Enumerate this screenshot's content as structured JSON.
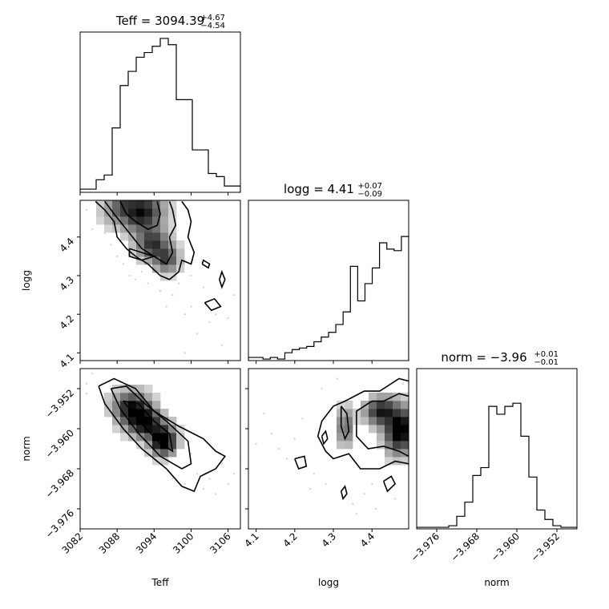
{
  "chart_data": {
    "type": "corner",
    "parameters": [
      "Teff",
      "logg",
      "norm"
    ],
    "titles": [
      {
        "param": "Teff",
        "label": "Teff = 3094.39",
        "plus": "+4.67",
        "minus": "−4.54"
      },
      {
        "param": "logg",
        "label": "logg = 4.41",
        "plus": "+0.07",
        "minus": "−0.09"
      },
      {
        "param": "norm",
        "label": "norm = −3.96",
        "plus": "+0.01",
        "minus": "−0.01"
      }
    ],
    "ranges": {
      "Teff": [
        3082,
        3108
      ],
      "logg": [
        4.08,
        4.495
      ],
      "norm": [
        -3.98,
        -3.948
      ]
    },
    "ticks": {
      "Teff": {
        "values": [
          3082,
          3088,
          3094,
          3100,
          3106
        ],
        "labels": [
          "3082",
          "3088",
          "3094",
          "3100",
          "3106"
        ]
      },
      "logg": {
        "values": [
          4.1,
          4.2,
          4.3,
          4.4
        ],
        "labels": [
          "4.1",
          "4.2",
          "4.3",
          "4.4"
        ]
      },
      "norm": {
        "values": [
          -3.976,
          -3.968,
          -3.96,
          -3.952
        ],
        "labels": [
          "−3.976",
          "−3.968",
          "−3.960",
          "−3.952"
        ]
      }
    },
    "histograms": {
      "Teff": [
        0.02,
        0.02,
        0.08,
        0.11,
        0.41,
        0.68,
        0.77,
        0.86,
        0.89,
        0.93,
        0.98,
        0.94,
        0.59,
        0.59,
        0.27,
        0.27,
        0.12,
        0.1,
        0.04,
        0.04
      ],
      "logg": [
        0.02,
        0.02,
        0.01,
        0.02,
        0.01,
        0.05,
        0.07,
        0.08,
        0.09,
        0.12,
        0.15,
        0.18,
        0.23,
        0.31,
        0.6,
        0.38,
        0.49,
        0.59,
        0.75,
        0.71,
        0.7,
        0.79
      ],
      "norm": [
        0.01,
        0.01,
        0.01,
        0.01,
        0.02,
        0.08,
        0.17,
        0.34,
        0.39,
        0.78,
        0.73,
        0.78,
        0.8,
        0.59,
        0.33,
        0.12,
        0.06,
        0.02,
        0.01,
        0.01
      ]
    },
    "hist2d": [
      {
        "x": "Teff",
        "y": "logg",
        "blobs": [
          {
            "x": 3091,
            "y": 4.47,
            "sx": 3.0,
            "sy": 0.035,
            "w": 1.0
          },
          {
            "x": 3094,
            "y": 4.38,
            "sx": 2.0,
            "sy": 0.03,
            "w": 0.75
          },
          {
            "x": 3096,
            "y": 4.34,
            "sx": 1.5,
            "sy": 0.025,
            "w": 0.55
          }
        ],
        "contours": [
          [
            [
              3084.5,
              4.492
            ],
            [
              3086,
              4.47
            ],
            [
              3087.5,
              4.44
            ],
            [
              3088,
              4.4
            ],
            [
              3089.5,
              4.37
            ],
            [
              3091,
              4.35
            ],
            [
              3093,
              4.33
            ],
            [
              3095,
              4.3
            ],
            [
              3096.5,
              4.29
            ],
            [
              3098,
              4.31
            ],
            [
              3098.5,
              4.34
            ],
            [
              3100,
              4.33
            ],
            [
              3100.5,
              4.36
            ],
            [
              3099.5,
              4.4
            ],
            [
              3100,
              4.44
            ],
            [
              3099.5,
              4.47
            ],
            [
              3098.5,
              4.492
            ]
          ],
          [
            [
              3086,
              4.492
            ],
            [
              3087.5,
              4.46
            ],
            [
              3089,
              4.43
            ],
            [
              3090.5,
              4.4
            ],
            [
              3092,
              4.37
            ],
            [
              3094,
              4.35
            ],
            [
              3096,
              4.33
            ],
            [
              3097,
              4.36
            ],
            [
              3096.5,
              4.4
            ],
            [
              3097.5,
              4.43
            ],
            [
              3097,
              4.47
            ],
            [
              3096.5,
              4.492
            ]
          ],
          [
            [
              3088.5,
              4.492
            ],
            [
              3089.5,
              4.46
            ],
            [
              3091,
              4.44
            ],
            [
              3093,
              4.42
            ],
            [
              3094.5,
              4.43
            ],
            [
              3095,
              4.46
            ],
            [
              3094.5,
              4.492
            ]
          ],
          [
            [
              3090,
              4.37
            ],
            [
              3092,
              4.36
            ],
            [
              3094,
              4.35
            ],
            [
              3092,
              4.34
            ],
            [
              3090,
              4.35
            ],
            [
              3090,
              4.37
            ]
          ],
          [
            [
              3102.2,
              4.23
            ],
            [
              3103.3,
              4.21
            ],
            [
              3104.8,
              4.22
            ],
            [
              3103.8,
              4.24
            ],
            [
              3102.2,
              4.23
            ]
          ],
          [
            [
              3104.6,
              4.29
            ],
            [
              3105,
              4.27
            ],
            [
              3105.5,
              4.29
            ],
            [
              3105,
              4.31
            ],
            [
              3104.6,
              4.29
            ]
          ],
          [
            [
              3101.8,
              4.33
            ],
            [
              3102.8,
              4.32
            ],
            [
              3103,
              4.33
            ],
            [
              3102,
              4.34
            ],
            [
              3101.8,
              4.33
            ]
          ]
        ],
        "scatter": [
          [
            3086,
            4.41
          ],
          [
            3087,
            4.38
          ],
          [
            3089,
            4.33
          ],
          [
            3090,
            4.3
          ],
          [
            3092,
            4.31
          ],
          [
            3095,
            4.26
          ],
          [
            3097,
            4.25
          ],
          [
            3099,
            4.2
          ],
          [
            3100,
            4.22
          ],
          [
            3103,
            4.18
          ],
          [
            3104,
            4.2
          ],
          [
            3106,
            4.19
          ],
          [
            3101,
            4.15
          ],
          [
            3098,
            4.28
          ],
          [
            3093,
            4.28
          ],
          [
            3085,
            4.45
          ],
          [
            3083,
            4.47
          ],
          [
            3107,
            4.25
          ],
          [
            3105,
            4.12
          ],
          [
            3099,
            4.1
          ],
          [
            3102,
            4.27
          ],
          [
            3096,
            4.22
          ],
          [
            3088,
            4.35
          ],
          [
            3091,
            4.29
          ],
          [
            3100,
            4.3
          ],
          [
            3084,
            4.42
          ]
        ]
      },
      {
        "x": "Teff",
        "y": "norm",
        "blobs": [
          {
            "x": 3090,
            "y": -3.9555,
            "sx": 2.2,
            "sy": 0.0025,
            "w": 0.8
          },
          {
            "x": 3093,
            "y": -3.959,
            "sx": 2.0,
            "sy": 0.0022,
            "w": 0.9
          },
          {
            "x": 3095.5,
            "y": -3.9625,
            "sx": 1.5,
            "sy": 0.002,
            "w": 1.0
          }
        ],
        "contours": [
          [
            [
              3085,
              -3.9515
            ],
            [
              3087.5,
              -3.95
            ],
            [
              3091,
              -3.952
            ],
            [
              3094,
              -3.9565
            ],
            [
              3098,
              -3.9595
            ],
            [
              3102,
              -3.962
            ],
            [
              3104,
              -3.9645
            ],
            [
              3105.5,
              -3.9655
            ],
            [
              3104,
              -3.968
            ],
            [
              3101.5,
              -3.9695
            ],
            [
              3100.5,
              -3.9725
            ],
            [
              3098.5,
              -3.9715
            ],
            [
              3096,
              -3.968
            ],
            [
              3092,
              -3.964
            ],
            [
              3089,
              -3.96
            ],
            [
              3086,
              -3.955
            ],
            [
              3085,
              -3.9515
            ]
          ],
          [
            [
              3087,
              -3.952
            ],
            [
              3089.5,
              -3.9515
            ],
            [
              3092.5,
              -3.955
            ],
            [
              3096,
              -3.9585
            ],
            [
              3099.5,
              -3.9625
            ],
            [
              3100,
              -3.967
            ],
            [
              3098.5,
              -3.968
            ],
            [
              3095,
              -3.9655
            ],
            [
              3091.5,
              -3.961
            ],
            [
              3088.5,
              -3.956
            ],
            [
              3087,
              -3.952
            ]
          ],
          [
            [
              3089,
              -3.9545
            ],
            [
              3091.5,
              -3.955
            ],
            [
              3094,
              -3.9585
            ],
            [
              3096.5,
              -3.961
            ],
            [
              3097,
              -3.9645
            ],
            [
              3095,
              -3.963
            ],
            [
              3092,
              -3.959
            ],
            [
              3089,
              -3.9545
            ]
          ]
        ],
        "scatter": [
          [
            3083,
            -3.951
          ],
          [
            3084,
            -3.949
          ],
          [
            3086,
            -3.954
          ],
          [
            3101,
            -3.969
          ],
          [
            3103,
            -3.97
          ],
          [
            3105,
            -3.967
          ],
          [
            3106,
            -3.971
          ],
          [
            3104,
            -3.973
          ],
          [
            3099,
            -3.971
          ],
          [
            3090,
            -3.958
          ],
          [
            3107,
            -3.969
          ],
          [
            3100,
            -3.965
          ],
          [
            3097,
            -3.97
          ],
          [
            3083,
            -3.953
          ],
          [
            3108,
            -3.966
          ],
          [
            3102,
            -3.972
          ]
        ]
      },
      {
        "x": "logg",
        "y": "norm",
        "blobs": [
          {
            "x": 4.47,
            "y": -3.96,
            "sx": 0.03,
            "sy": 0.0035,
            "w": 1.0
          },
          {
            "x": 4.42,
            "y": -3.9565,
            "sx": 0.03,
            "sy": 0.002,
            "w": 0.7
          },
          {
            "x": 4.33,
            "y": -3.9595,
            "sx": 0.015,
            "sy": 0.003,
            "w": 0.55
          }
        ],
        "contours": [
          [
            [
              4.495,
              -3.9505
            ],
            [
              4.47,
              -3.95
            ],
            [
              4.42,
              -3.9525
            ],
            [
              4.38,
              -3.9525
            ],
            [
              4.33,
              -3.9545
            ],
            [
              4.3,
              -3.9555
            ],
            [
              4.27,
              -3.9585
            ],
            [
              4.26,
              -3.9615
            ],
            [
              4.28,
              -3.9645
            ],
            [
              4.3,
              -3.966
            ],
            [
              4.34,
              -3.965
            ],
            [
              4.37,
              -3.968
            ],
            [
              4.42,
              -3.968
            ],
            [
              4.46,
              -3.9665
            ],
            [
              4.495,
              -3.967
            ]
          ],
          [
            [
              4.495,
              -3.9535
            ],
            [
              4.47,
              -3.953
            ],
            [
              4.43,
              -3.9545
            ],
            [
              4.4,
              -3.9545
            ],
            [
              4.36,
              -3.9565
            ],
            [
              4.36,
              -3.9615
            ],
            [
              4.39,
              -3.964
            ],
            [
              4.43,
              -3.9635
            ],
            [
              4.47,
              -3.9645
            ],
            [
              4.495,
              -3.9655
            ]
          ],
          [
            [
              4.32,
              -3.9555
            ],
            [
              4.335,
              -3.957
            ],
            [
              4.34,
              -3.9605
            ],
            [
              4.33,
              -3.962
            ],
            [
              4.32,
              -3.9595
            ],
            [
              4.32,
              -3.9555
            ]
          ],
          [
            [
              4.2,
              -3.966
            ],
            [
              4.225,
              -3.9655
            ],
            [
              4.23,
              -3.9675
            ],
            [
              4.21,
              -3.968
            ],
            [
              4.2,
              -3.966
            ]
          ],
          [
            [
              4.43,
              -3.9705
            ],
            [
              4.45,
              -3.9695
            ],
            [
              4.46,
              -3.971
            ],
            [
              4.44,
              -3.9725
            ],
            [
              4.43,
              -3.9705
            ]
          ],
          [
            [
              4.32,
              -3.9725
            ],
            [
              4.33,
              -3.9715
            ],
            [
              4.335,
              -3.973
            ],
            [
              4.325,
              -3.974
            ],
            [
              4.32,
              -3.9725
            ]
          ],
          [
            [
              4.27,
              -3.9615
            ],
            [
              4.28,
              -3.9605
            ],
            [
              4.285,
              -3.962
            ],
            [
              4.275,
              -3.963
            ],
            [
              4.27,
              -3.9615
            ]
          ]
        ],
        "scatter": [
          [
            4.1,
            -3.963
          ],
          [
            4.14,
            -3.961
          ],
          [
            4.18,
            -3.966
          ],
          [
            4.22,
            -3.958
          ],
          [
            4.25,
            -3.969
          ],
          [
            4.28,
            -3.971
          ],
          [
            4.35,
            -3.975
          ],
          [
            4.38,
            -3.973
          ],
          [
            4.41,
            -3.976
          ],
          [
            4.46,
            -3.974
          ],
          [
            4.31,
            -3.95
          ],
          [
            4.27,
            -3.952
          ],
          [
            4.2,
            -3.962
          ],
          [
            4.16,
            -3.964
          ],
          [
            4.12,
            -3.957
          ],
          [
            4.4,
            -3.971
          ],
          [
            4.36,
            -3.977
          ],
          [
            4.24,
            -3.972
          ],
          [
            4.48,
            -3.951
          ]
        ]
      }
    ]
  }
}
